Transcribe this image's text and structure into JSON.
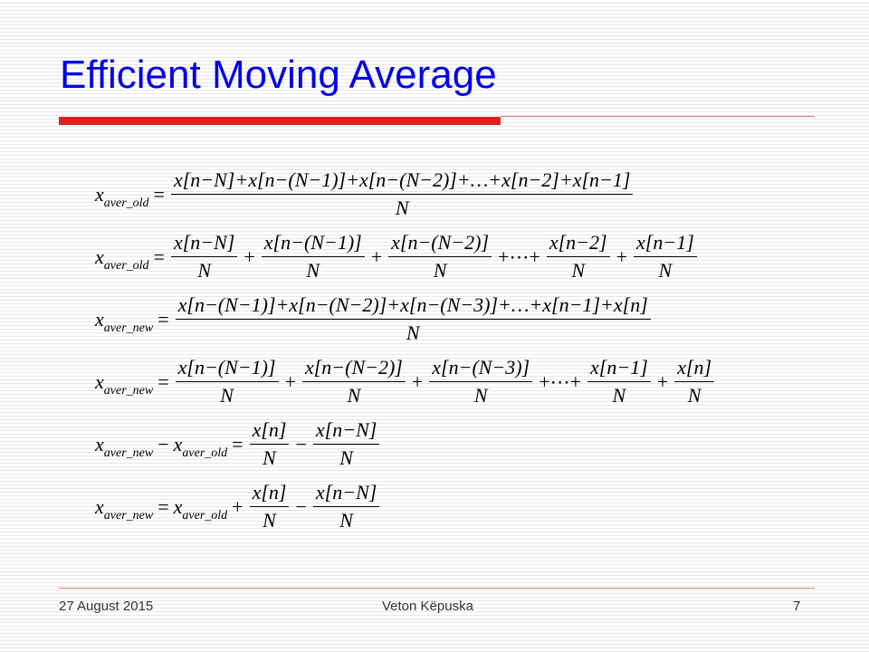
{
  "title": "Efficient Moving Average",
  "equations": [
    [
      {
        "var": "x",
        "sub": "aver_old"
      },
      {
        "op": "="
      },
      {
        "num": "x[n−N]+x[n−(N−1)]+x[n−(N−2)]+…+x[n−2]+x[n−1]",
        "den": "N"
      }
    ],
    [
      {
        "var": "x",
        "sub": "aver_old"
      },
      {
        "op": "="
      },
      {
        "num": "x[n−N]",
        "den": "N"
      },
      {
        "op": "+"
      },
      {
        "num": "x[n−(N−1)]",
        "den": "N"
      },
      {
        "op": "+"
      },
      {
        "num": "x[n−(N−2)]",
        "den": "N"
      },
      {
        "op": "+⋯+"
      },
      {
        "num": "x[n−2]",
        "den": "N"
      },
      {
        "op": "+"
      },
      {
        "num": "x[n−1]",
        "den": "N"
      }
    ],
    [
      {
        "var": "x",
        "sub": "aver_new"
      },
      {
        "op": "="
      },
      {
        "num": "x[n−(N−1)]+x[n−(N−2)]+x[n−(N−3)]+…+x[n−1]+x[n]",
        "den": "N"
      }
    ],
    [
      {
        "var": "x",
        "sub": "aver_new"
      },
      {
        "op": "="
      },
      {
        "num": "x[n−(N−1)]",
        "den": "N"
      },
      {
        "op": "+"
      },
      {
        "num": "x[n−(N−2)]",
        "den": "N"
      },
      {
        "op": "+"
      },
      {
        "num": "x[n−(N−3)]",
        "den": "N"
      },
      {
        "op": "+⋯+"
      },
      {
        "num": "x[n−1]",
        "den": "N"
      },
      {
        "op": "+"
      },
      {
        "num": "x[n]",
        "den": "N"
      }
    ],
    [
      {
        "var": "x",
        "sub": "aver_new"
      },
      {
        "op": "−"
      },
      {
        "var": "x",
        "sub": "aver_old"
      },
      {
        "op": "="
      },
      {
        "num": "x[n]",
        "den": "N"
      },
      {
        "op": "−"
      },
      {
        "num": "x[n−N]",
        "den": "N"
      }
    ],
    [
      {
        "var": "x",
        "sub": "aver_new"
      },
      {
        "op": "="
      },
      {
        "var": "x",
        "sub": "aver_old"
      },
      {
        "op": "+"
      },
      {
        "num": "x[n]",
        "den": "N"
      },
      {
        "op": "−"
      },
      {
        "num": "x[n−N]",
        "den": "N"
      }
    ]
  ],
  "footer": {
    "date": "27 August 2015",
    "author": "Veton Këpuska",
    "page": "7"
  }
}
